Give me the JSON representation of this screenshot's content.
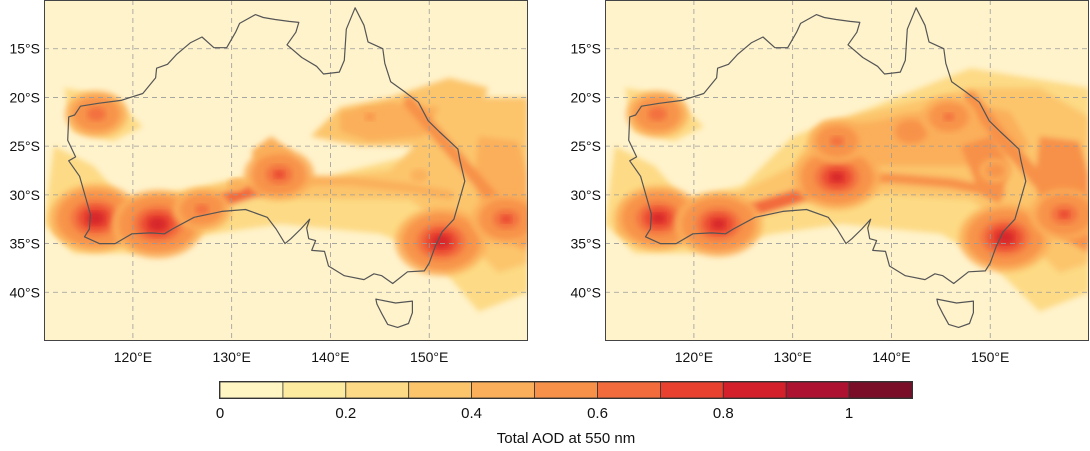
{
  "figure": {
    "colorbar": {
      "label": "Total AOD at 550 nm",
      "tick_labels": [
        "0",
        "0.2",
        "0.4",
        "0.6",
        "0.8",
        "1"
      ],
      "tick_values": [
        0,
        0.2,
        0.4,
        0.6,
        0.8,
        1.0
      ],
      "range": [
        0,
        1.1
      ],
      "step": 0.1,
      "colors": [
        "#FFF6C3",
        "#FDEB9F",
        "#FDDA85",
        "#FCC56C",
        "#FBAF5A",
        "#F7914A",
        "#F26B3D",
        "#E8412F",
        "#D4202A",
        "#AD1330",
        "#7A0D27"
      ]
    },
    "colors": {
      "background": "#FFF3CC",
      "coastline": "#555555",
      "grid": "#9a9a9a",
      "frame": "#444444"
    }
  },
  "chart_data": [
    {
      "type": "heatmap",
      "panel": "left",
      "value_label": "Total AOD at 550 nm",
      "lon_range": [
        111,
        160
      ],
      "lat_range": [
        -45,
        -10
      ],
      "x_ticks": [
        120,
        130,
        140,
        150
      ],
      "x_tick_labels": [
        "120°E",
        "130°E",
        "140°E",
        "150°E"
      ],
      "y_ticks": [
        -15,
        -20,
        -25,
        -30,
        -35,
        -40
      ],
      "y_tick_labels": [
        "15°S",
        "20°S",
        "25°S",
        "30°S",
        "35°S",
        "40°S"
      ],
      "grid": true,
      "plumes": [
        {
          "lon": 116.3,
          "lat": -21.7,
          "aod": 0.75
        },
        {
          "lon": 116.2,
          "lat": -32.4,
          "aod": 0.95
        },
        {
          "lon": 122.5,
          "lat": -33.0,
          "aod": 0.95
        },
        {
          "lon": 127.0,
          "lat": -31.5,
          "aod": 0.72
        },
        {
          "lon": 134.8,
          "lat": -27.9,
          "aod": 0.8
        },
        {
          "lon": 130.5,
          "lat": -29.0,
          "aod": 0.45
        },
        {
          "lon": 144.0,
          "lat": -22.0,
          "aod": 0.5
        },
        {
          "lon": 151.2,
          "lat": -34.8,
          "aod": 0.95
        },
        {
          "lon": 157.8,
          "lat": -32.5,
          "aod": 0.8
        },
        {
          "lon": 149.0,
          "lat": -28.0,
          "aod": 0.45
        }
      ]
    },
    {
      "type": "heatmap",
      "panel": "right",
      "value_label": "Total AOD at 550 nm",
      "lon_range": [
        111,
        160
      ],
      "lat_range": [
        -45,
        -10
      ],
      "x_ticks": [
        120,
        130,
        140,
        150
      ],
      "x_tick_labels": [
        "120°E",
        "130°E",
        "140°E",
        "150°E"
      ],
      "y_ticks": [
        -15,
        -20,
        -25,
        -30,
        -35,
        -40
      ],
      "y_tick_labels": [
        "15°S",
        "20°S",
        "25°S",
        "30°S",
        "35°S",
        "40°S"
      ],
      "grid": true,
      "plumes": [
        {
          "lon": 116.3,
          "lat": -21.7,
          "aod": 0.75
        },
        {
          "lon": 116.4,
          "lat": -32.4,
          "aod": 0.92
        },
        {
          "lon": 122.5,
          "lat": -33.0,
          "aod": 0.92
        },
        {
          "lon": 134.5,
          "lat": -28.2,
          "aod": 0.92
        },
        {
          "lon": 134.5,
          "lat": -24.5,
          "aod": 0.72
        },
        {
          "lon": 142.0,
          "lat": -23.5,
          "aod": 0.65
        },
        {
          "lon": 145.8,
          "lat": -22.0,
          "aod": 0.7
        },
        {
          "lon": 151.5,
          "lat": -34.4,
          "aod": 0.95
        },
        {
          "lon": 157.5,
          "lat": -32.0,
          "aod": 0.8
        },
        {
          "lon": 150.5,
          "lat": -27.5,
          "aod": 0.55
        }
      ]
    }
  ]
}
